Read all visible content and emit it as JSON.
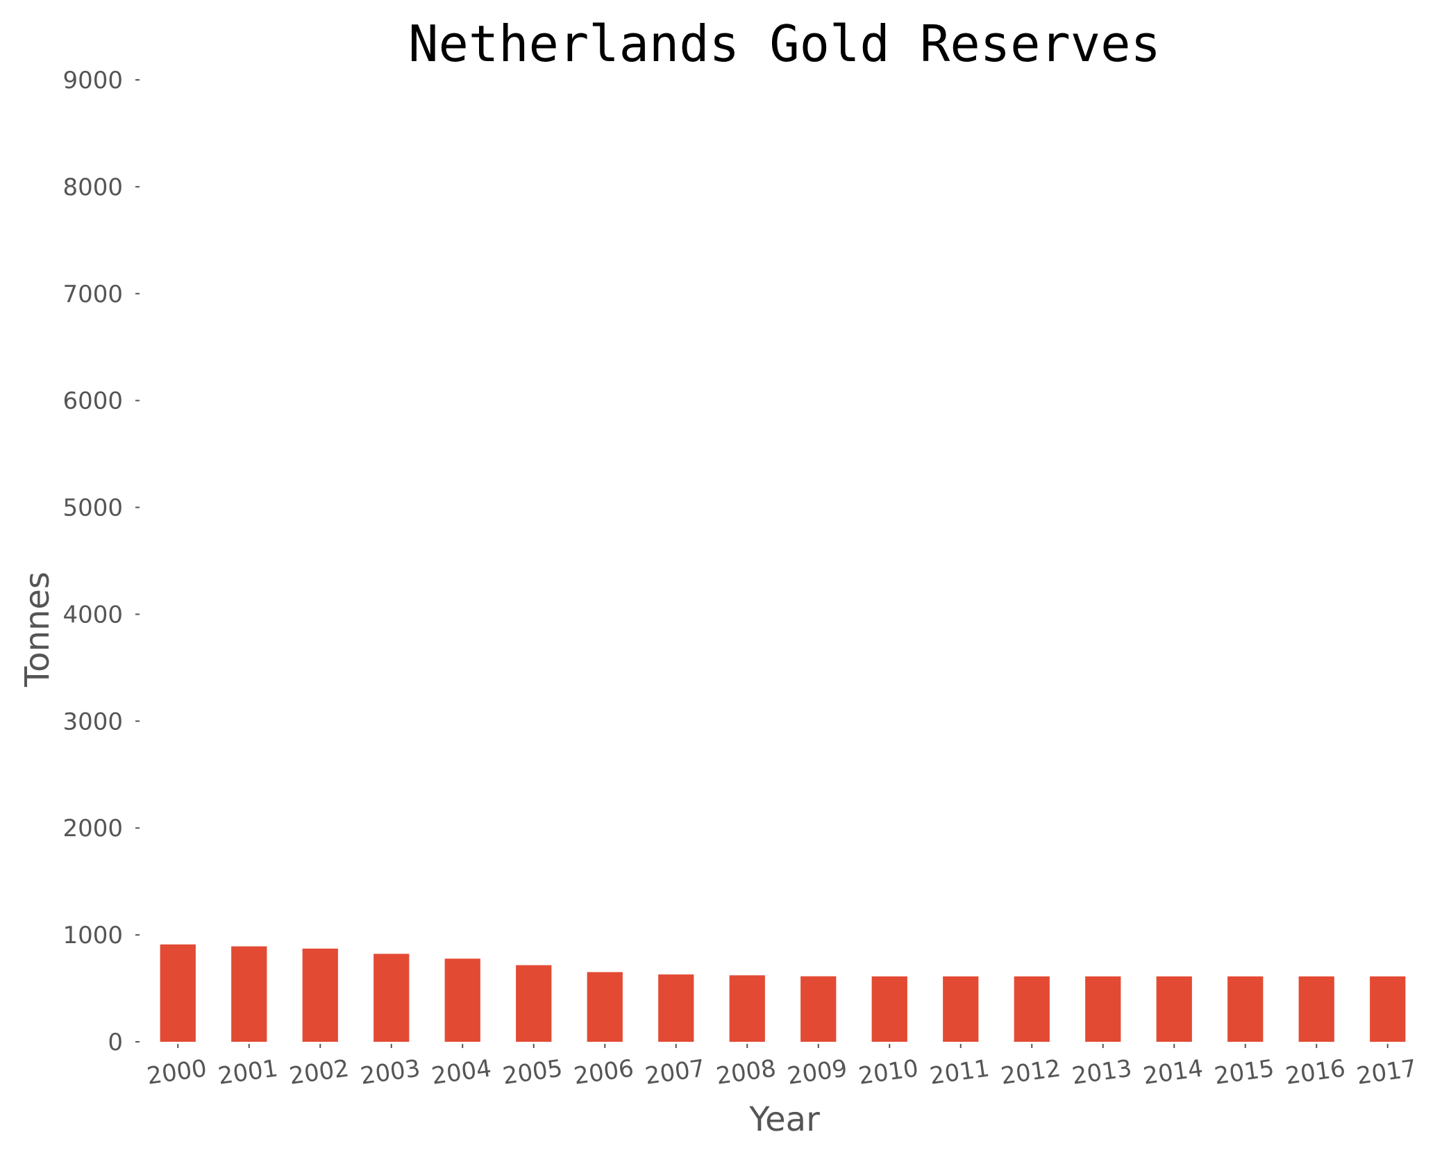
{
  "chart_data": {
    "type": "bar",
    "title": "Netherlands Gold Reserves",
    "xlabel": "Year",
    "ylabel": "Tonnes",
    "categories": [
      "2000",
      "2001",
      "2002",
      "2003",
      "2004",
      "2005",
      "2006",
      "2007",
      "2008",
      "2009",
      "2010",
      "2011",
      "2012",
      "2013",
      "2014",
      "2015",
      "2016",
      "2017"
    ],
    "values": [
      911,
      893,
      872,
      823,
      778,
      717,
      652,
      630,
      622,
      613,
      612,
      612,
      612,
      612,
      612,
      612,
      612,
      612
    ],
    "ylim": [
      0,
      9000
    ],
    "yticks": [
      "0",
      "1000",
      "2000",
      "3000",
      "4000",
      "5000",
      "6000",
      "7000",
      "8000",
      "9000"
    ],
    "grid": false,
    "legend": "none",
    "colors": {
      "bar": "#E34A33",
      "tick": "#555555",
      "title": "#000000"
    }
  }
}
